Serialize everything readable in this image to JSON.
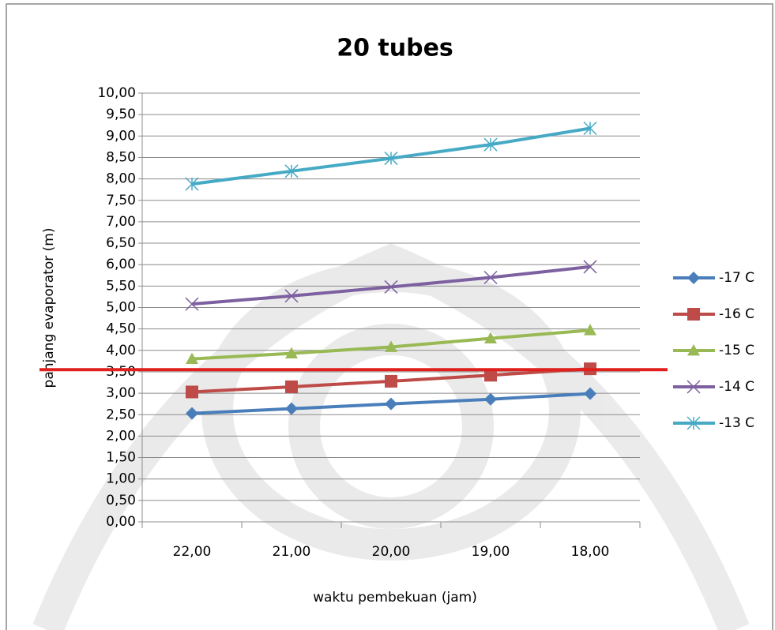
{
  "chart_data": {
    "type": "line",
    "title": "20 tubes",
    "x_label": "waktu pembekuan (jam)",
    "y_label": "panjang evaporator (m)",
    "categories": [
      "22,00",
      "21,00",
      "20,00",
      "19,00",
      "18,00"
    ],
    "series": [
      {
        "name": "-17 C",
        "color": "#4a7ebb",
        "marker": "diamond",
        "values": [
          2.53,
          2.64,
          2.75,
          2.86,
          2.99
        ]
      },
      {
        "name": "-16 C",
        "color": "#be4b48",
        "marker": "square",
        "values": [
          3.03,
          3.15,
          3.28,
          3.42,
          3.57
        ]
      },
      {
        "name": "-15 C",
        "color": "#98b954",
        "marker": "triangle",
        "values": [
          3.8,
          3.93,
          4.08,
          4.28,
          4.47
        ]
      },
      {
        "name": "-14 C",
        "color": "#7d60a0",
        "marker": "x",
        "values": [
          5.08,
          5.27,
          5.48,
          5.7,
          5.95
        ]
      },
      {
        "name": "-13 C",
        "color": "#46aac5",
        "marker": "star",
        "values": [
          7.88,
          8.18,
          8.48,
          8.8,
          9.18
        ]
      }
    ],
    "reference_line": {
      "value": 3.55,
      "color": "#e0201c"
    },
    "ylim": [
      0,
      10
    ],
    "yticks": [
      {
        "value": 0,
        "label": "0,00"
      },
      {
        "value": 0.5,
        "label": "0,50"
      },
      {
        "value": 1,
        "label": "1,00"
      },
      {
        "value": 1.5,
        "label": "1,50"
      },
      {
        "value": 2,
        "label": "2,00"
      },
      {
        "value": 2.5,
        "label": "2,50"
      },
      {
        "value": 3,
        "label": "3,00"
      },
      {
        "value": 3.5,
        "label": "3,50"
      },
      {
        "value": 4,
        "label": "4,00"
      },
      {
        "value": 4.5,
        "label": "4,50"
      },
      {
        "value": 5,
        "label": "5,00"
      },
      {
        "value": 5.5,
        "label": "5,50"
      },
      {
        "value": 6,
        "label": "6,00"
      },
      {
        "value": 6.5,
        "label": "6,50"
      },
      {
        "value": 7,
        "label": "7,00"
      },
      {
        "value": 7.5,
        "label": "7,50"
      },
      {
        "value": 8,
        "label": "8,00"
      },
      {
        "value": 8.5,
        "label": "8,50"
      },
      {
        "value": 9,
        "label": "9,00"
      },
      {
        "value": 9.5,
        "label": "9,50"
      },
      {
        "value": 10,
        "label": "10,00"
      }
    ],
    "grid": true,
    "legend": "right"
  }
}
